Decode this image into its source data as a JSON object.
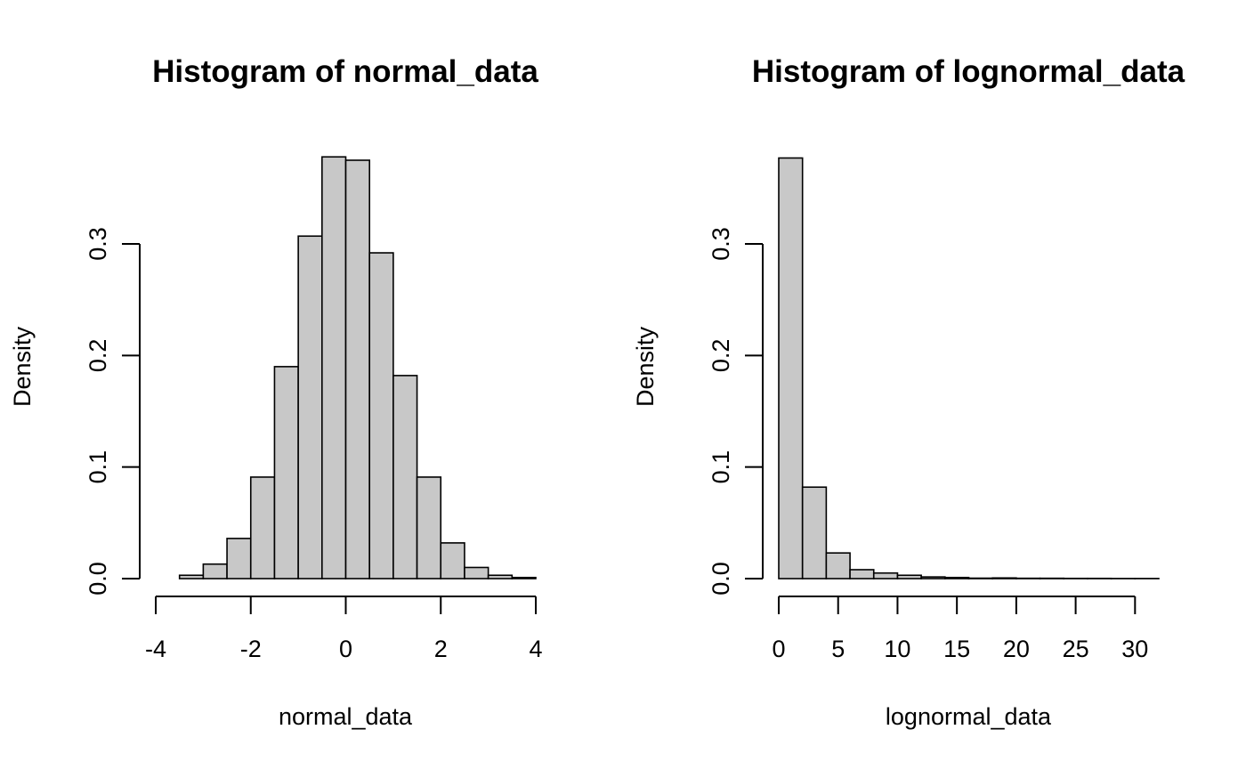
{
  "chart_data": [
    {
      "type": "bar",
      "title": "Histogram of normal_data",
      "xlabel": "normal_data",
      "ylabel": "Density",
      "bin_edges": [
        -3.5,
        -3.0,
        -2.5,
        -2.0,
        -1.5,
        -1.0,
        -0.5,
        0.0,
        0.5,
        1.0,
        1.5,
        2.0,
        2.5,
        3.0,
        3.5,
        4.0
      ],
      "values": [
        0.003,
        0.013,
        0.036,
        0.091,
        0.19,
        0.307,
        0.378,
        0.375,
        0.292,
        0.182,
        0.091,
        0.032,
        0.01,
        0.003,
        0.001
      ],
      "xlim": [
        -4,
        4
      ],
      "ylim": [
        0,
        0.38
      ],
      "xticks": [
        -4,
        -2,
        0,
        2,
        4
      ],
      "xtick_labels": [
        "-4",
        "-2",
        "0",
        "2",
        "4"
      ],
      "yticks": [
        0.0,
        0.1,
        0.2,
        0.3
      ],
      "ytick_labels": [
        "0.0",
        "0.1",
        "0.2",
        "0.3"
      ],
      "grid": false
    },
    {
      "type": "bar",
      "title": "Histogram of lognormal_data",
      "xlabel": "lognormal_data",
      "ylabel": "Density",
      "bin_edges": [
        0,
        2,
        4,
        6,
        8,
        10,
        12,
        14,
        16,
        18,
        20,
        22,
        24,
        26,
        28,
        30,
        32
      ],
      "values": [
        0.377,
        0.082,
        0.023,
        0.008,
        0.005,
        0.003,
        0.0015,
        0.001,
        0.0004,
        0.0006,
        0.0003,
        0.0003,
        0.0002,
        0.0002,
        0.0001,
        0.0001
      ],
      "xlim": [
        0,
        32
      ],
      "ylim": [
        0,
        0.38
      ],
      "xticks": [
        0,
        5,
        10,
        15,
        20,
        25,
        30
      ],
      "xtick_labels": [
        "0",
        "5",
        "10",
        "15",
        "20",
        "25",
        "30"
      ],
      "yticks": [
        0.0,
        0.1,
        0.2,
        0.3
      ],
      "ytick_labels": [
        "0.0",
        "0.1",
        "0.2",
        "0.3"
      ],
      "grid": false
    }
  ]
}
